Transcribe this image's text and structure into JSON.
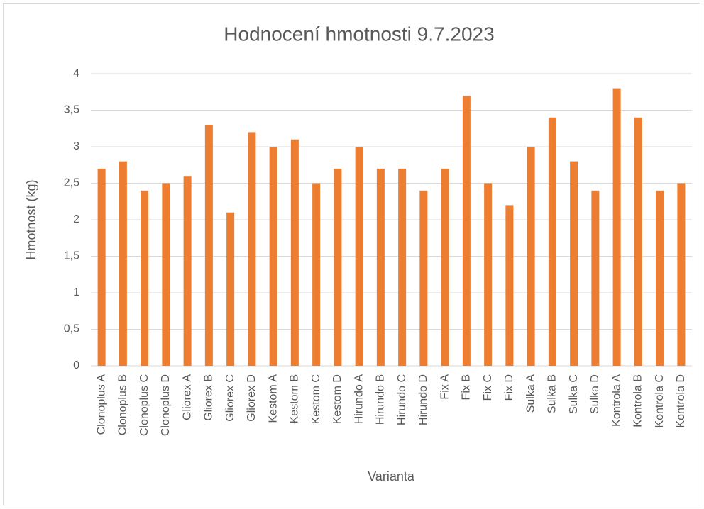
{
  "chart_data": {
    "type": "bar",
    "title": "Hodnocení  hmotnosti 9.7.2023",
    "x_label": "Varianta",
    "y_label": "Hmotnost (kg)",
    "categories": [
      "Clonoplus A",
      "Clonoplus B",
      "Clonoplus C",
      "Clonoplus D",
      "Gliorex A",
      "Gliorex B",
      "Gliorex C",
      "Gliorex D",
      "Kestom A",
      "Kestom B",
      "Kestom C",
      "Kestom D",
      "Hirundo A",
      "Hirundo B",
      "Hirundo C",
      "Hirundo D",
      "Fix A",
      "Fix B",
      "Fix C",
      "Fix D",
      "Sulka A",
      "Sulka B",
      "Sulka C",
      "Sulka D",
      "Kontrola A",
      "Kontrola B",
      "Kontrola C",
      "Kontrola D"
    ],
    "values": [
      2.7,
      2.8,
      2.4,
      2.5,
      2.6,
      3.3,
      2.1,
      3.2,
      3.0,
      3.1,
      2.5,
      2.7,
      3.0,
      2.7,
      2.7,
      2.4,
      2.7,
      3.7,
      2.5,
      2.2,
      3.0,
      3.4,
      2.8,
      2.4,
      3.8,
      3.4,
      2.4,
      2.5
    ],
    "color": "#ed7d31",
    "ylim": [
      0,
      4
    ],
    "yticks": [
      0,
      {
        "value": 0.5,
        "label": "0,5"
      },
      1,
      {
        "value": 1.5,
        "label": "1,5"
      },
      2,
      {
        "value": 2.5,
        "label": "2,5"
      },
      3,
      {
        "value": 3.5,
        "label": "3,5"
      },
      4
    ],
    "grid": true
  }
}
